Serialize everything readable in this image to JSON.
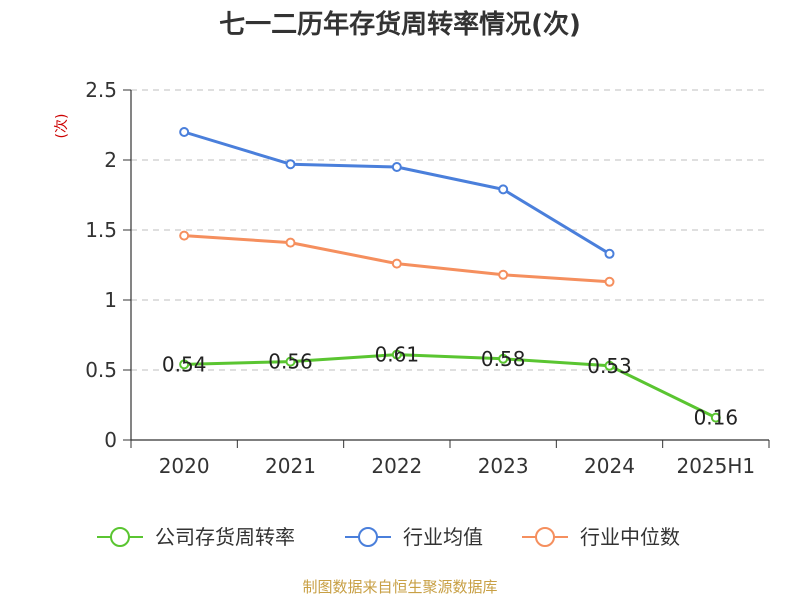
{
  "chart_data": {
    "type": "line",
    "title": "七一二历年存货周转率情况(次)",
    "ylabel": "(次)",
    "categories": [
      "2020",
      "2021",
      "2022",
      "2023",
      "2024",
      "2025H1"
    ],
    "ylim": [
      0,
      2.5
    ],
    "yticks": [
      "0",
      "0.5",
      "1",
      "1.5",
      "2",
      "2.5"
    ],
    "grid": true,
    "legend_position": "bottom",
    "series": [
      {
        "name": "公司存货周转率",
        "color": "#5ac531",
        "values": [
          0.54,
          0.56,
          0.61,
          0.58,
          0.53,
          0.16
        ],
        "labels": [
          "0.54",
          "0.56",
          "0.61",
          "0.58",
          "0.53",
          "0.16"
        ]
      },
      {
        "name": "行业均值",
        "color": "#4a7fdb",
        "values": [
          2.2,
          1.97,
          1.95,
          1.79,
          1.33,
          null
        ]
      },
      {
        "name": "行业中位数",
        "color": "#f58f5e",
        "values": [
          1.46,
          1.41,
          1.26,
          1.18,
          1.13,
          null
        ]
      }
    ]
  },
  "source": "制图数据来自恒生聚源数据库"
}
